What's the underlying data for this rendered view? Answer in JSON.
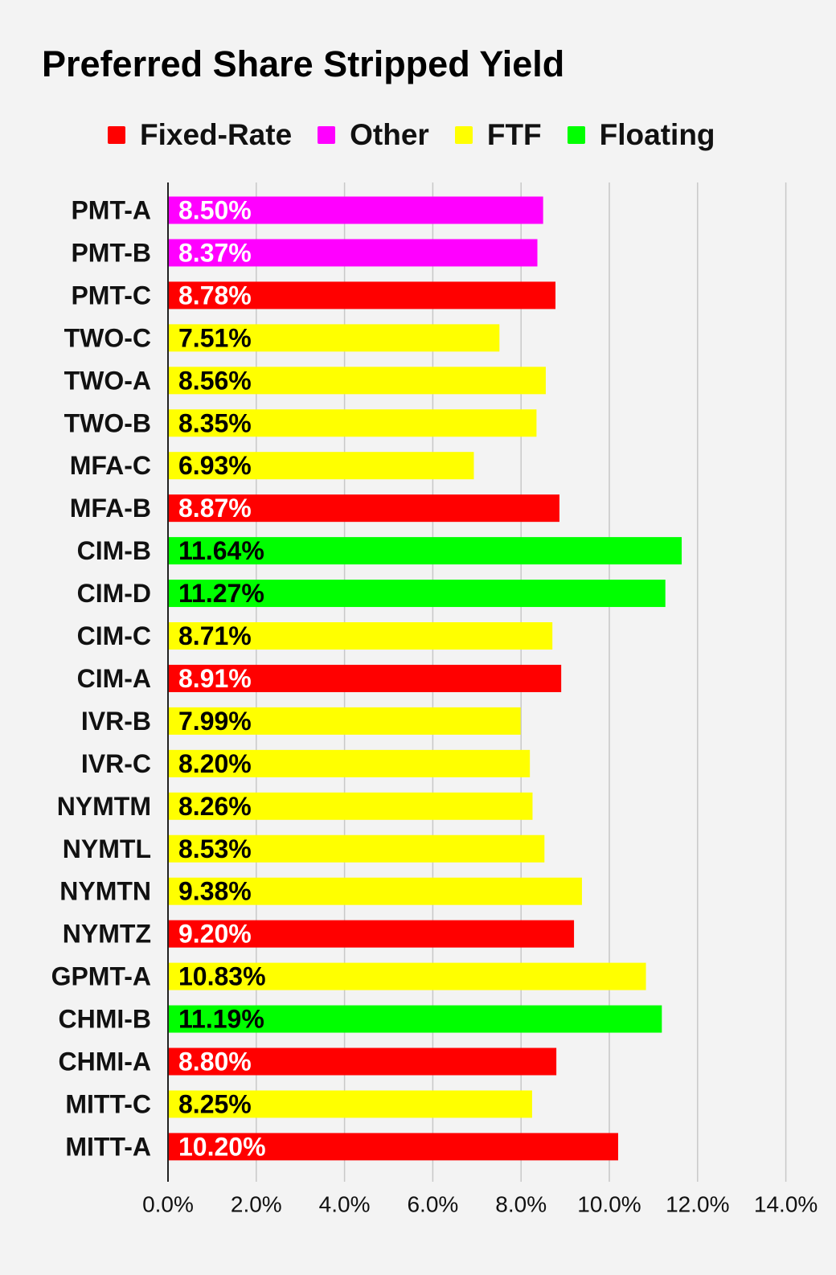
{
  "chart_data": {
    "type": "bar",
    "orientation": "horizontal",
    "title": "Preferred Share Stripped Yield",
    "legend_position": "top",
    "legend": [
      {
        "name": "Fixed-Rate",
        "color": "#ff0000"
      },
      {
        "name": "Other",
        "color": "#ff00ff"
      },
      {
        "name": "FTF",
        "color": "#ffff00"
      },
      {
        "name": "Floating",
        "color": "#00ff00"
      }
    ],
    "categories": [
      "PMT-A",
      "PMT-B",
      "PMT-C",
      "TWO-C",
      "TWO-A",
      "TWO-B",
      "MFA-C",
      "MFA-B",
      "CIM-B",
      "CIM-D",
      "CIM-C",
      "CIM-A",
      "IVR-B",
      "IVR-C",
      "NYMTM",
      "NYMTL",
      "NYMTN",
      "NYMTZ",
      "GPMT-A",
      "CHMI-B",
      "CHMI-A",
      "MITT-C",
      "MITT-A"
    ],
    "values": [
      8.5,
      8.37,
      8.78,
      7.51,
      8.56,
      8.35,
      6.93,
      8.87,
      11.64,
      11.27,
      8.71,
      8.91,
      7.99,
      8.2,
      8.26,
      8.53,
      9.38,
      9.2,
      10.83,
      11.19,
      8.8,
      8.25,
      10.2
    ],
    "data_labels": [
      "8.50%",
      "8.37%",
      "8.78%",
      "7.51%",
      "8.56%",
      "8.35%",
      "6.93%",
      "8.87%",
      "11.64%",
      "11.27%",
      "8.71%",
      "8.91%",
      "7.99%",
      "8.20%",
      "8.26%",
      "8.53%",
      "9.38%",
      "9.20%",
      "10.83%",
      "11.19%",
      "8.80%",
      "8.25%",
      "10.20%"
    ],
    "bar_types": [
      "Other",
      "Other",
      "Fixed-Rate",
      "FTF",
      "FTF",
      "FTF",
      "FTF",
      "Fixed-Rate",
      "Floating",
      "Floating",
      "FTF",
      "Fixed-Rate",
      "FTF",
      "FTF",
      "FTF",
      "FTF",
      "FTF",
      "Fixed-Rate",
      "FTF",
      "Floating",
      "Fixed-Rate",
      "FTF",
      "Fixed-Rate"
    ],
    "xlim": [
      0,
      14
    ],
    "x_ticks": [
      "0.0%",
      "2.0%",
      "4.0%",
      "6.0%",
      "8.0%",
      "10.0%",
      "12.0%",
      "14.0%"
    ],
    "xlabel": "",
    "ylabel": "",
    "grid": "vertical"
  }
}
